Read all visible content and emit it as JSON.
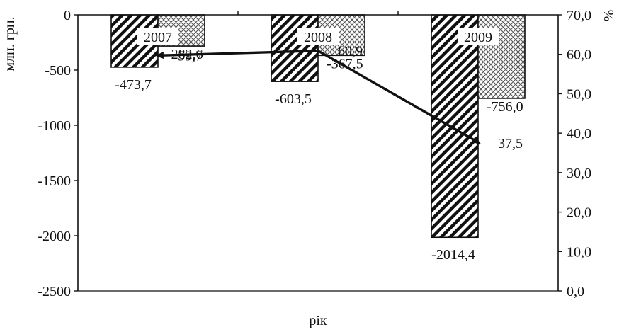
{
  "chart_data": {
    "type": "bar",
    "title": "",
    "xlabel": "рік",
    "ylabel": "млн. грн.",
    "y2label": "%",
    "categories": [
      "2007",
      "2008",
      "2009"
    ],
    "ylim": [
      -2500,
      0
    ],
    "y_ticks": [
      0,
      -500,
      -1000,
      -1500,
      -2000,
      -2500
    ],
    "y_tick_labels": [
      "0",
      "-500",
      "-1000",
      "-1500",
      "-2000",
      "-2500"
    ],
    "y2lim": [
      0,
      70
    ],
    "y2_ticks": [
      70,
      60,
      50,
      40,
      30,
      20,
      10,
      0
    ],
    "y2_tick_labels": [
      "70,0",
      "60,0",
      "50,0",
      "40,0",
      "30,0",
      "20,0",
      "10,0",
      "0,0"
    ],
    "series": [
      {
        "values": [
          -473.7,
          -603.5,
          -2014.4
        ],
        "labels": [
          "-473,7",
          "-603,5",
          "-2014,4"
        ],
        "pattern": "diagonal-hatch",
        "axis": "left"
      },
      {
        "values": [
          -282.6,
          -367.5,
          -756.0
        ],
        "labels": [
          "-282,6",
          "-367,5",
          "-756,0"
        ],
        "pattern": "crosshatch",
        "axis": "left"
      },
      {
        "type": "line",
        "values": [
          59.7,
          60.9,
          37.5
        ],
        "labels": [
          "59,7",
          "60,9",
          "37,5"
        ],
        "axis": "right",
        "marker": "arrow"
      }
    ],
    "grid": false,
    "colors": {
      "ink": "#111111",
      "background": "#ffffff"
    }
  }
}
